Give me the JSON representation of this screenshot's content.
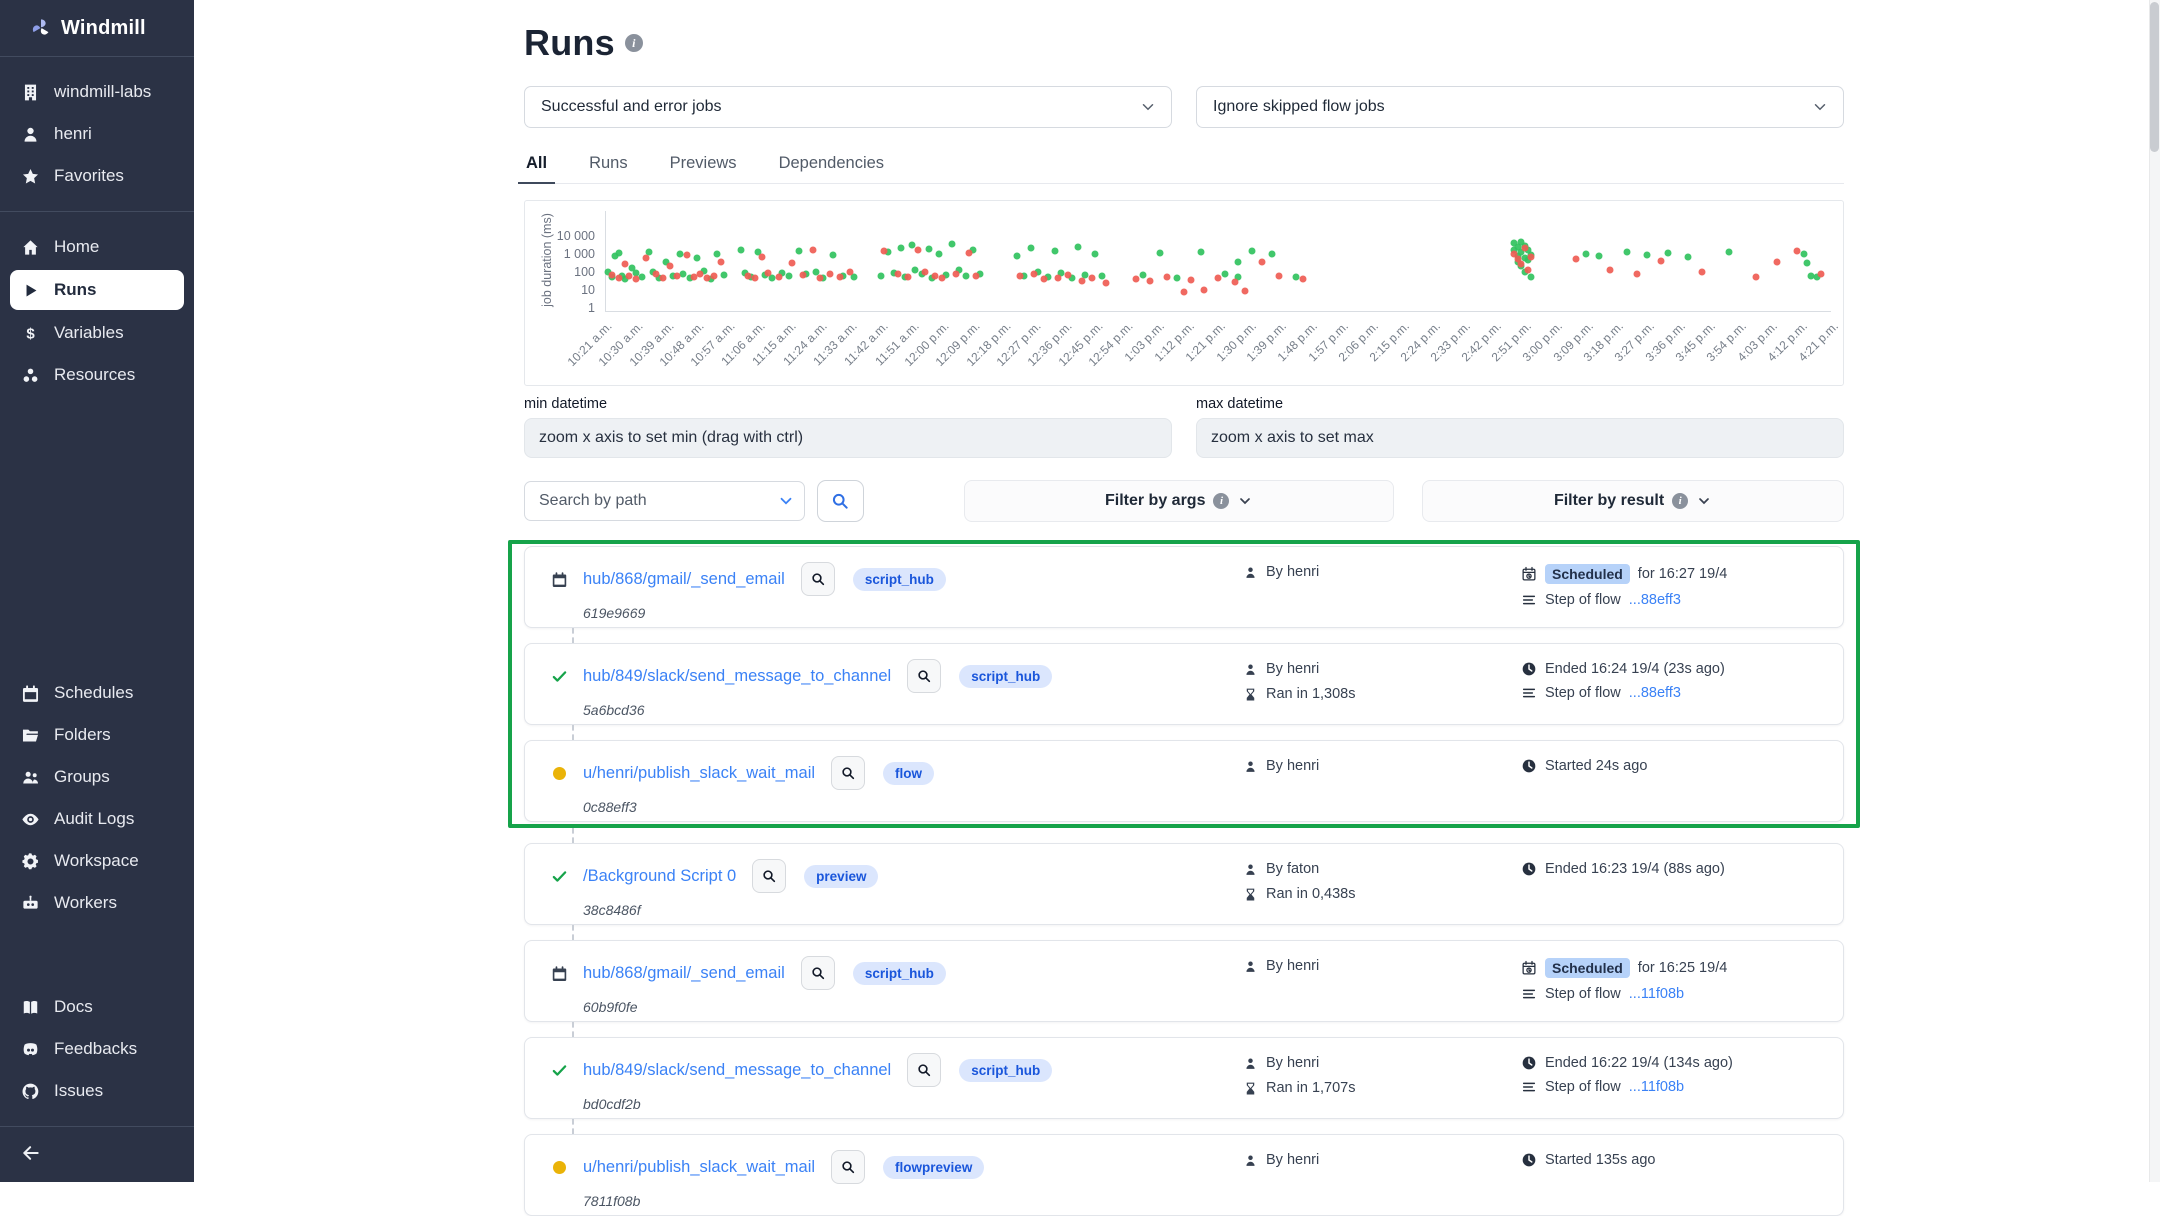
{
  "app": {
    "brand": "Windmill"
  },
  "sidebar": {
    "workspace_items": [
      {
        "label": "windmill-labs",
        "icon": "building-icon"
      },
      {
        "label": "henri",
        "icon": "user-icon"
      },
      {
        "label": "Favorites",
        "icon": "star-icon"
      }
    ],
    "nav_items": [
      {
        "label": "Home",
        "icon": "home-icon",
        "active": false
      },
      {
        "label": "Runs",
        "icon": "play-icon",
        "active": true
      },
      {
        "label": "Variables",
        "icon": "dollar-icon",
        "active": false
      },
      {
        "label": "Resources",
        "icon": "resources-icon",
        "active": false
      }
    ],
    "manage_items": [
      {
        "label": "Schedules",
        "icon": "calendar-icon"
      },
      {
        "label": "Folders",
        "icon": "folder-icon"
      },
      {
        "label": "Groups",
        "icon": "groups-icon"
      },
      {
        "label": "Audit Logs",
        "icon": "eye-icon"
      },
      {
        "label": "Workspace",
        "icon": "gear-icon"
      },
      {
        "label": "Workers",
        "icon": "robot-icon"
      }
    ],
    "external_items": [
      {
        "label": "Docs",
        "icon": "book-icon"
      },
      {
        "label": "Feedbacks",
        "icon": "discord-icon"
      },
      {
        "label": "Issues",
        "icon": "github-icon"
      }
    ]
  },
  "header": {
    "title": "Runs",
    "job_filter_value": "Successful and error jobs",
    "flow_filter_value": "Ignore skipped flow jobs"
  },
  "tabs": [
    {
      "label": "All",
      "active": true
    },
    {
      "label": "Runs",
      "active": false
    },
    {
      "label": "Previews",
      "active": false
    },
    {
      "label": "Dependencies",
      "active": false
    }
  ],
  "chart_data": {
    "type": "scatter",
    "ylabel": "job duration (ms)",
    "y_scale": "log",
    "y_ticks": [
      1,
      10,
      100,
      1000,
      10000
    ],
    "y_tick_labels": [
      "1",
      "10",
      "100",
      "1 000",
      "10 000"
    ],
    "x_range_minutes": [
      0,
      360
    ],
    "x_tick_labels": [
      "10:21 a.m.",
      "10:30 a.m.",
      "10:39 a.m.",
      "10:48 a.m.",
      "10:57 a.m.",
      "11:06 a.m.",
      "11:15 a.m.",
      "11:24 a.m.",
      "11:33 a.m.",
      "11:42 a.m.",
      "11:51 a.m.",
      "12:00 p.m.",
      "12:09 p.m.",
      "12:18 p.m.",
      "12:27 p.m.",
      "12:36 p.m.",
      "12:45 p.m.",
      "12:54 p.m.",
      "1:03 p.m.",
      "1:12 p.m.",
      "1:21 p.m.",
      "1:30 p.m.",
      "1:39 p.m.",
      "1:48 p.m.",
      "1:57 p.m.",
      "2:06 p.m.",
      "2:15 p.m.",
      "2:24 p.m.",
      "2:33 p.m.",
      "2:42 p.m.",
      "2:51 p.m.",
      "3:00 p.m.",
      "3:09 p.m.",
      "3:18 p.m.",
      "3:27 p.m.",
      "3:36 p.m.",
      "3:45 p.m.",
      "3:54 p.m.",
      "4:03 p.m.",
      "4:12 p.m.",
      "4:21 p.m."
    ],
    "series": [
      {
        "name": "success",
        "color": "#31c25e",
        "points": [
          [
            1,
            120
          ],
          [
            2,
            60
          ],
          [
            3,
            900
          ],
          [
            4,
            1300
          ],
          [
            5,
            70
          ],
          [
            6,
            45
          ],
          [
            8,
            200
          ],
          [
            9,
            95
          ],
          [
            11,
            60
          ],
          [
            13,
            1500
          ],
          [
            14,
            110
          ],
          [
            16,
            50
          ],
          [
            18,
            420
          ],
          [
            20,
            65
          ],
          [
            22,
            1200
          ],
          [
            23,
            90
          ],
          [
            25,
            55
          ],
          [
            27,
            700
          ],
          [
            29,
            130
          ],
          [
            31,
            48
          ],
          [
            33,
            1100
          ],
          [
            35,
            75
          ],
          [
            40,
            1800
          ],
          [
            41,
            95
          ],
          [
            43,
            60
          ],
          [
            45,
            1400
          ],
          [
            47,
            80
          ],
          [
            49,
            55
          ],
          [
            52,
            100
          ],
          [
            54,
            65
          ],
          [
            57,
            1600
          ],
          [
            59,
            90
          ],
          [
            62,
            120
          ],
          [
            64,
            55
          ],
          [
            67,
            950
          ],
          [
            70,
            70
          ],
          [
            73,
            60
          ],
          [
            81,
            70
          ],
          [
            83,
            1500
          ],
          [
            85,
            100
          ],
          [
            87,
            2600
          ],
          [
            88,
            60
          ],
          [
            90,
            3400
          ],
          [
            91,
            150
          ],
          [
            93,
            90
          ],
          [
            95,
            2200
          ],
          [
            96,
            55
          ],
          [
            98,
            1200
          ],
          [
            100,
            75
          ],
          [
            102,
            4200
          ],
          [
            104,
            140
          ],
          [
            106,
            65
          ],
          [
            108,
            1900
          ],
          [
            110,
            85
          ],
          [
            121,
            900
          ],
          [
            123,
            70
          ],
          [
            125,
            2400
          ],
          [
            127,
            120
          ],
          [
            130,
            60
          ],
          [
            132,
            1700
          ],
          [
            134,
            95
          ],
          [
            137,
            55
          ],
          [
            139,
            2900
          ],
          [
            141,
            80
          ],
          [
            144,
            1100
          ],
          [
            146,
            65
          ],
          [
            158,
            75
          ],
          [
            163,
            1300
          ],
          [
            168,
            55
          ],
          [
            175,
            1500
          ],
          [
            182,
            90
          ],
          [
            186,
            400
          ],
          [
            186,
            60
          ],
          [
            190,
            1700
          ],
          [
            196,
            1100
          ],
          [
            203,
            60
          ],
          [
            267,
            4800
          ],
          [
            267,
            2000
          ],
          [
            268,
            2800
          ],
          [
            268,
            900
          ],
          [
            268,
            400
          ],
          [
            269,
            1500
          ],
          [
            269,
            250
          ],
          [
            269,
            5200
          ],
          [
            270,
            3200
          ],
          [
            270,
            700
          ],
          [
            270,
            120
          ],
          [
            271,
            1800
          ],
          [
            271,
            500
          ],
          [
            272,
            1000
          ],
          [
            272,
            60
          ],
          [
            288,
            1200
          ],
          [
            292,
            900
          ],
          [
            300,
            1500
          ],
          [
            306,
            1000
          ],
          [
            312,
            1300
          ],
          [
            318,
            800
          ],
          [
            330,
            1400
          ],
          [
            352,
            1200
          ],
          [
            353,
            380
          ],
          [
            354,
            70
          ],
          [
            356,
            60
          ]
        ]
      },
      {
        "name": "error",
        "color": "#ef5c54",
        "points": [
          [
            2,
            80
          ],
          [
            4,
            55
          ],
          [
            6,
            300
          ],
          [
            7,
            65
          ],
          [
            9,
            45
          ],
          [
            12,
            700
          ],
          [
            15,
            85
          ],
          [
            17,
            55
          ],
          [
            19,
            250
          ],
          [
            21,
            70
          ],
          [
            24,
            1000
          ],
          [
            26,
            60
          ],
          [
            28,
            90
          ],
          [
            30,
            50
          ],
          [
            32,
            65
          ],
          [
            34,
            420
          ],
          [
            42,
            70
          ],
          [
            44,
            55
          ],
          [
            46,
            800
          ],
          [
            48,
            95
          ],
          [
            51,
            60
          ],
          [
            55,
            350
          ],
          [
            58,
            75
          ],
          [
            61,
            1900
          ],
          [
            63,
            55
          ],
          [
            66,
            85
          ],
          [
            69,
            60
          ],
          [
            72,
            110
          ],
          [
            82,
            1600
          ],
          [
            86,
            90
          ],
          [
            89,
            60
          ],
          [
            92,
            2000
          ],
          [
            94,
            110
          ],
          [
            97,
            70
          ],
          [
            99,
            55
          ],
          [
            103,
            85
          ],
          [
            107,
            1300
          ],
          [
            109,
            65
          ],
          [
            122,
            65
          ],
          [
            126,
            90
          ],
          [
            129,
            45
          ],
          [
            133,
            55
          ],
          [
            136,
            75
          ],
          [
            140,
            35
          ],
          [
            143,
            50
          ],
          [
            147,
            28
          ],
          [
            156,
            45
          ],
          [
            160,
            35
          ],
          [
            165,
            60
          ],
          [
            170,
            9
          ],
          [
            172,
            40
          ],
          [
            176,
            12
          ],
          [
            180,
            55
          ],
          [
            185,
            30
          ],
          [
            188,
            10
          ],
          [
            193,
            420
          ],
          [
            198,
            65
          ],
          [
            205,
            45
          ],
          [
            267,
            1200
          ],
          [
            268,
            600
          ],
          [
            269,
            300
          ],
          [
            270,
            2400
          ],
          [
            271,
            150
          ],
          [
            272,
            800
          ],
          [
            285,
            600
          ],
          [
            295,
            150
          ],
          [
            303,
            90
          ],
          [
            310,
            450
          ],
          [
            322,
            120
          ],
          [
            338,
            60
          ],
          [
            344,
            420
          ],
          [
            350,
            1600
          ],
          [
            357,
            90
          ]
        ]
      }
    ]
  },
  "datetime": {
    "min_label": "min datetime",
    "min_placeholder": "zoom x axis to set min (drag with ctrl)",
    "max_label": "max datetime",
    "max_placeholder": "zoom x axis to set max"
  },
  "search": {
    "placeholder": "Search by path"
  },
  "filters": {
    "args_label": "Filter by args",
    "result_label": "Filter by result"
  },
  "runs": {
    "highlight_count": 3,
    "rows": [
      {
        "status_icon": "calendar-icon",
        "path": "hub/868/gmail/_send_email",
        "kind": "script_hub",
        "id": "619e9669",
        "by": "By henri",
        "ran": null,
        "line1": {
          "icon": "calendar-clock-icon",
          "badge": "Scheduled",
          "text": "for 16:27 19/4"
        },
        "line2": {
          "icon": "list-icon",
          "prefix": "Step of flow ",
          "link": "...88eff3"
        }
      },
      {
        "status_icon": "check-icon",
        "path": "hub/849/slack/send_message_to_channel",
        "kind": "script_hub",
        "id": "5a6bcd36",
        "by": "By henri",
        "ran": "Ran in 1,308s",
        "line1": {
          "icon": "clock-icon",
          "text": "Ended 16:24 19/4 (23s ago)"
        },
        "line2": {
          "icon": "list-icon",
          "prefix": "Step of flow ",
          "link": "...88eff3"
        }
      },
      {
        "status_icon": "running-dot-icon",
        "path": "u/henri/publish_slack_wait_mail",
        "kind": "flow",
        "id": "0c88eff3",
        "by": "By henri",
        "ran": null,
        "line1": {
          "icon": "clock-icon",
          "text": "Started 24s ago"
        },
        "line2": null
      },
      {
        "status_icon": "check-icon",
        "path": "/Background Script 0",
        "kind": "preview",
        "id": "38c8486f",
        "by": "By faton",
        "ran": "Ran in 0,438s",
        "line1": {
          "icon": "clock-icon",
          "text": "Ended 16:23 19/4 (88s ago)"
        },
        "line2": null
      },
      {
        "status_icon": "calendar-icon",
        "path": "hub/868/gmail/_send_email",
        "kind": "script_hub",
        "id": "60b9f0fe",
        "by": "By henri",
        "ran": null,
        "line1": {
          "icon": "calendar-clock-icon",
          "badge": "Scheduled",
          "text": "for 16:25 19/4"
        },
        "line2": {
          "icon": "list-icon",
          "prefix": "Step of flow ",
          "link": "...11f08b"
        }
      },
      {
        "status_icon": "check-icon",
        "path": "hub/849/slack/send_message_to_channel",
        "kind": "script_hub",
        "id": "bd0cdf2b",
        "by": "By henri",
        "ran": "Ran in 1,707s",
        "line1": {
          "icon": "clock-icon",
          "text": "Ended 16:22 19/4 (134s ago)"
        },
        "line2": {
          "icon": "list-icon",
          "prefix": "Step of flow ",
          "link": "...11f08b"
        }
      },
      {
        "status_icon": "running-dot-icon",
        "path": "u/henri/publish_slack_wait_mail",
        "kind": "flowpreview",
        "id": "7811f08b",
        "by": "By henri",
        "ran": null,
        "line1": {
          "icon": "clock-icon",
          "text": "Started 135s ago"
        },
        "line2": null
      }
    ]
  },
  "colors": {
    "sidebar_bg": "#2b3245",
    "accent_blue": "#3b82f6",
    "success_green": "#31c25e",
    "error_red": "#ef5c54",
    "highlight_green": "#16a34a",
    "running_yellow": "#eab308",
    "badge_bg": "#dbe6fd",
    "badge_text": "#1a56db"
  }
}
